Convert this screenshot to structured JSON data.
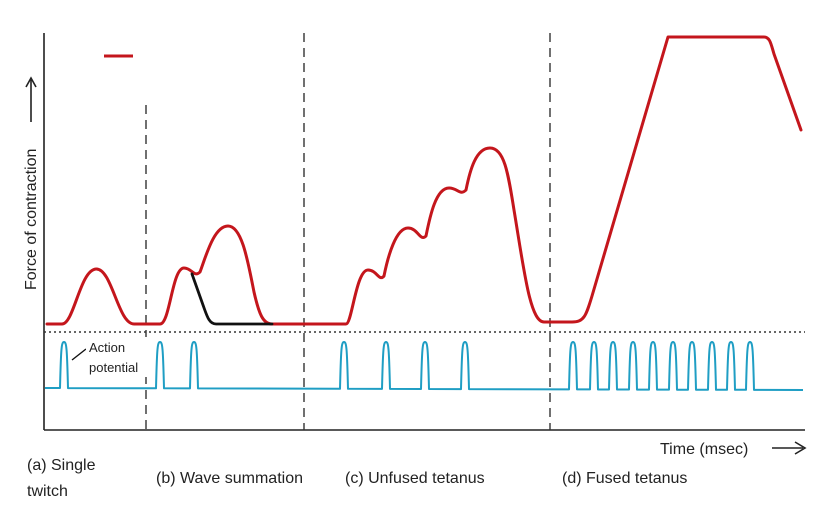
{
  "y_axis_label": "Force of contraction",
  "x_axis_label": "Time (msec)",
  "annotation": "Action potential",
  "annotation_lines": [
    "Action",
    "potential"
  ],
  "panels": [
    {
      "id": "a",
      "label_lines": [
        "(a) Single",
        "twitch"
      ]
    },
    {
      "id": "b",
      "label_lines": [
        "(b) Wave summation"
      ]
    },
    {
      "id": "c",
      "label_lines": [
        "(c) Unfused tetanus"
      ]
    },
    {
      "id": "d",
      "label_lines": [
        "(d) Fused tetanus"
      ]
    }
  ],
  "colors": {
    "force_curve": "#c4161c",
    "relaxation_curve": "#111111",
    "action_potential": "#1f9ec4",
    "axes": "#222222",
    "dividers": "#333333"
  }
}
